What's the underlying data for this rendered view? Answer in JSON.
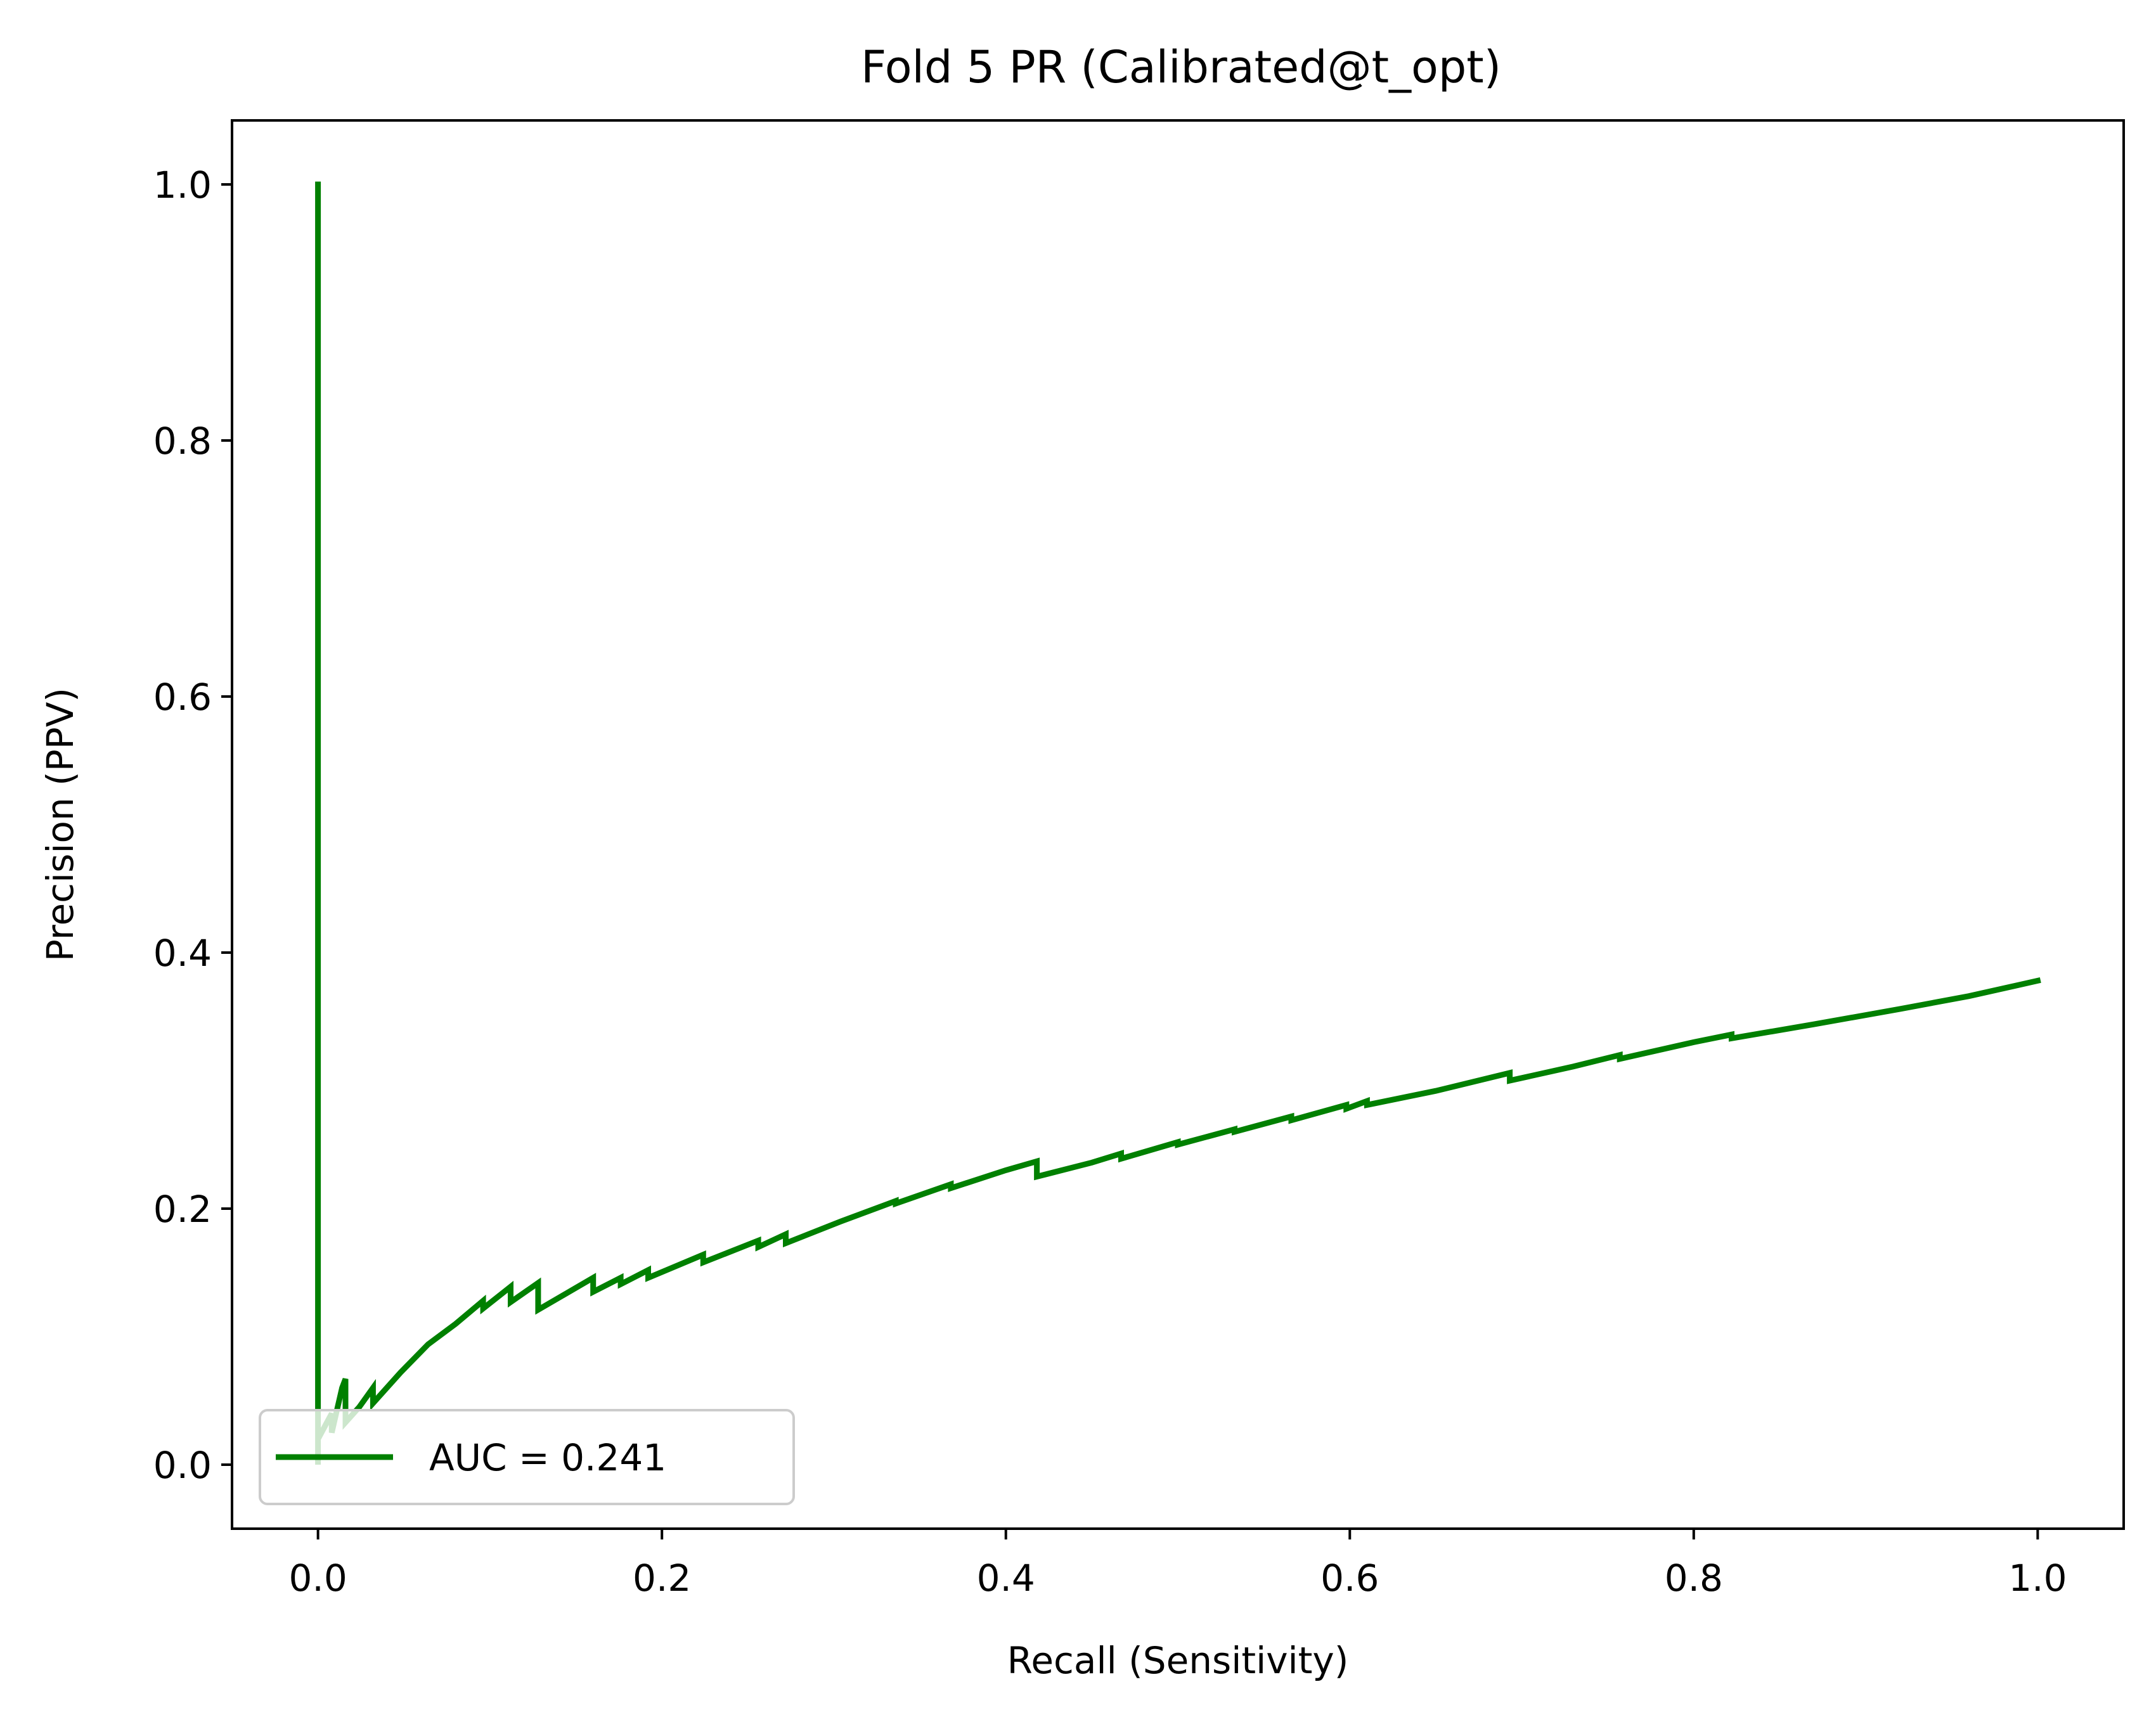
{
  "chart_data": {
    "type": "line",
    "title": "Fold 5 PR (Calibrated@t_opt)",
    "xlabel": "Recall (Sensitivity)",
    "ylabel": "Precision (PPV)",
    "xlim": [
      -0.05,
      1.05
    ],
    "ylim": [
      -0.05,
      1.05
    ],
    "xticks": [
      0.0,
      0.2,
      0.4,
      0.6,
      0.8,
      1.0
    ],
    "xtick_labels": [
      "0.0",
      "0.2",
      "0.4",
      "0.6",
      "0.8",
      "1.0"
    ],
    "yticks": [
      0.0,
      0.2,
      0.4,
      0.6,
      0.8,
      1.0
    ],
    "ytick_labels": [
      "0.0",
      "0.2",
      "0.4",
      "0.6",
      "0.8",
      "1.0"
    ],
    "grid": false,
    "legend_position": "lower-left",
    "series": [
      {
        "name": "AUC = 0.241",
        "color": "#008000",
        "x": [
          0.0,
          0.0,
          0.0,
          0.0,
          0.008,
          0.008,
          0.014,
          0.016,
          0.016,
          0.024,
          0.032,
          0.032,
          0.048,
          0.064,
          0.08,
          0.096,
          0.096,
          0.112,
          0.112,
          0.128,
          0.128,
          0.16,
          0.16,
          0.176,
          0.176,
          0.192,
          0.192,
          0.224,
          0.224,
          0.256,
          0.256,
          0.272,
          0.272,
          0.304,
          0.336,
          0.336,
          0.368,
          0.368,
          0.4,
          0.418,
          0.418,
          0.45,
          0.467,
          0.467,
          0.5,
          0.5,
          0.533,
          0.533,
          0.566,
          0.566,
          0.598,
          0.598,
          0.61,
          0.61,
          0.65,
          0.693,
          0.693,
          0.73,
          0.757,
          0.757,
          0.8,
          0.822,
          0.822,
          0.87,
          0.92,
          0.96,
          1.0
        ],
        "y": [
          1.0,
          0.04,
          0.0,
          0.02,
          0.04,
          0.025,
          0.06,
          0.067,
          0.033,
          0.045,
          0.06,
          0.048,
          0.072,
          0.094,
          0.11,
          0.128,
          0.122,
          0.139,
          0.127,
          0.142,
          0.121,
          0.146,
          0.135,
          0.146,
          0.141,
          0.152,
          0.146,
          0.164,
          0.158,
          0.175,
          0.17,
          0.18,
          0.173,
          0.19,
          0.206,
          0.204,
          0.219,
          0.216,
          0.23,
          0.237,
          0.225,
          0.236,
          0.243,
          0.239,
          0.252,
          0.25,
          0.262,
          0.26,
          0.272,
          0.269,
          0.281,
          0.278,
          0.284,
          0.281,
          0.292,
          0.306,
          0.3,
          0.311,
          0.32,
          0.317,
          0.33,
          0.336,
          0.333,
          0.344,
          0.356,
          0.366,
          0.378
        ]
      }
    ],
    "legend_entries": [
      {
        "label": "AUC = 0.241",
        "color": "#008000"
      }
    ]
  }
}
